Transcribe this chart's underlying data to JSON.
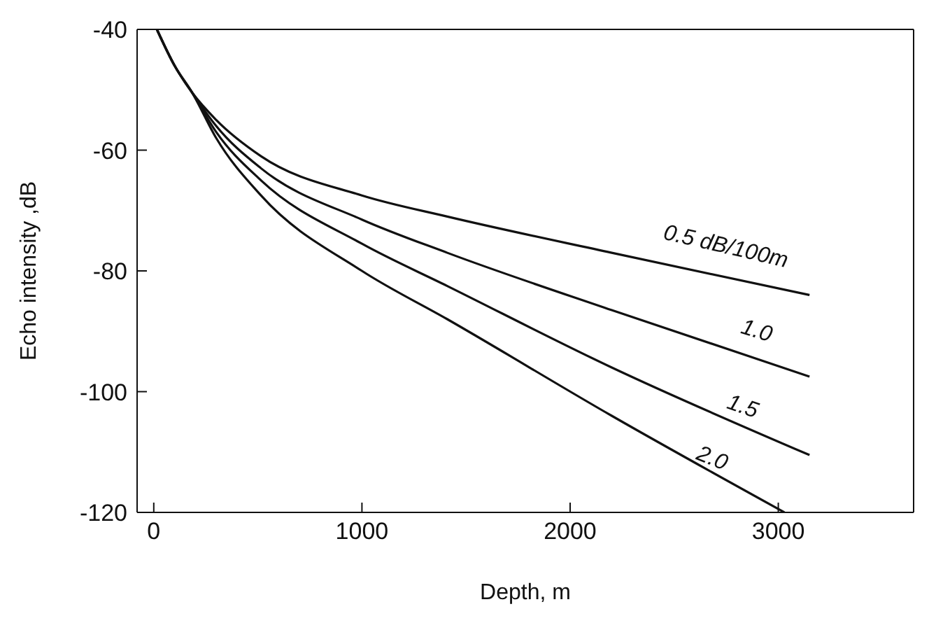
{
  "chart_data": {
    "type": "line",
    "xlabel": "Depth, m",
    "ylabel": "Echo intensity ,dB",
    "xlim": [
      -80,
      3650
    ],
    "xticks": [
      0,
      1000,
      2000,
      3000
    ],
    "ylim": [
      -120,
      -40
    ],
    "yticks": [
      -40,
      -60,
      -80,
      -100,
      -120
    ],
    "grid": false,
    "marker": "none",
    "line_style": "solid",
    "series": [
      {
        "name": "0.5 dB/100m",
        "color": "#111111",
        "x": [
          15,
          100,
          185,
          300,
          515,
          1000,
          1410,
          2200,
          3150
        ],
        "values": [
          -40,
          -46,
          -50.5,
          -55,
          -61,
          -67.5,
          -71,
          -77,
          -84
        ]
      },
      {
        "name": "1.0",
        "color": "#111111",
        "x": [
          15,
          100,
          185,
          300,
          515,
          1000,
          1410,
          2200,
          3150
        ],
        "values": [
          -40,
          -46,
          -50.5,
          -56,
          -63,
          -71.5,
          -77,
          -86.5,
          -97.5
        ]
      },
      {
        "name": "1.5",
        "color": "#111111",
        "x": [
          15,
          100,
          185,
          300,
          515,
          1000,
          1410,
          2200,
          3150
        ],
        "values": [
          -40,
          -46,
          -50.5,
          -57,
          -65,
          -75.5,
          -82.5,
          -96,
          -110.5
        ]
      },
      {
        "name": "2.0",
        "color": "#111111",
        "x": [
          15,
          100,
          185,
          300,
          515,
          1000,
          1410,
          2200,
          3030
        ],
        "values": [
          -40,
          -46,
          -50.5,
          -58,
          -67.5,
          -80,
          -88,
          -104,
          -120
        ]
      }
    ]
  }
}
